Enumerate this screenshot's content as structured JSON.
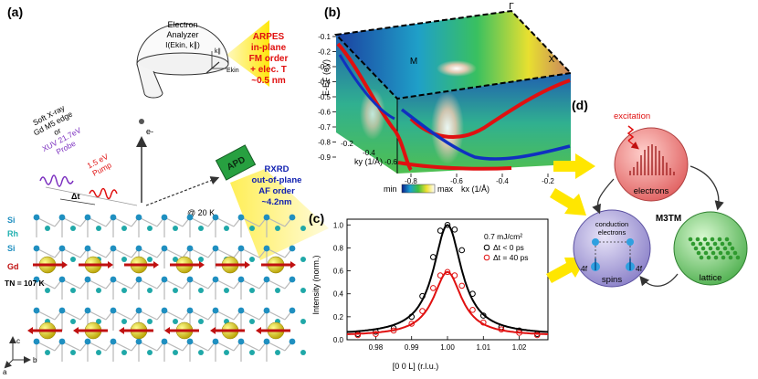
{
  "panel_labels": {
    "a": "(a)",
    "b": "(b)",
    "c": "(c)",
    "d": "(d)"
  },
  "analyzer": {
    "title_line1": "Electron",
    "title_line2": "Analyzer",
    "formula": "I(Ekin, k∥)",
    "k_axis": "k∥",
    "e_axis": "Ekin"
  },
  "arpes_box": {
    "line1": "ARPES",
    "line2": "in-plane",
    "line3": "FM order",
    "line4": "+ elec. T",
    "line5": "~0.5 nm"
  },
  "rxrd_box": {
    "line1": "RXRD",
    "line2": "out-of-plane",
    "line3": "AF order",
    "line4": "~4.2nm"
  },
  "apd_label": "APD",
  "electron_label": "e-",
  "temperature": "@ 20 K",
  "beams": {
    "xray_line1": "Soft X-ray",
    "xray_line2": "Gd M5 edge",
    "xray_line3": "or",
    "xuv_line1": "XUV 21.7eV",
    "xuv_line2": "Probe",
    "pump_line1": "1.5 eV",
    "pump_line2": "Pump",
    "delay": "Δt"
  },
  "crystal": {
    "layers": [
      "Si",
      "Rh",
      "Si",
      "Gd"
    ],
    "neel": "TN = 107 K",
    "axes": [
      "c",
      "b",
      "a"
    ]
  },
  "arpes_plot": {
    "y_axis_label": "E-EF (eV)",
    "y_ticks": [
      "-0.1",
      "-0.2",
      "-0.3",
      "-0.4",
      "-0.5",
      "-0.6",
      "-0.7",
      "-0.8",
      "-0.9"
    ],
    "ky_label": "ky (1/Å)",
    "ky_ticks": [
      "-0.2",
      "-0.4",
      "-0.6"
    ],
    "kx_label": "kx (1/Å)",
    "kx_ticks": [
      "-0.8",
      "-0.6",
      "-0.4",
      "-0.2"
    ],
    "points": [
      "Γ",
      "M",
      "X"
    ],
    "colorbar_min": "min",
    "colorbar_max": "max",
    "colors": {
      "band_red": "#e01010",
      "band_blue": "#1030c0"
    }
  },
  "chart_data": {
    "type": "scatter",
    "x": [
      0.975,
      0.98,
      0.985,
      0.99,
      0.993,
      0.996,
      0.998,
      1.0,
      1.002,
      1.004,
      1.007,
      1.01,
      1.015,
      1.02,
      1.025
    ],
    "series": [
      {
        "name": "Δt < 0 ps",
        "color": "#000000",
        "values": [
          0.05,
          0.07,
          0.1,
          0.2,
          0.38,
          0.72,
          0.95,
          1.0,
          0.96,
          0.78,
          0.4,
          0.21,
          0.11,
          0.08,
          0.05
        ]
      },
      {
        "name": "Δt = 40 ps",
        "color": "#e01010",
        "values": [
          0.04,
          0.05,
          0.08,
          0.14,
          0.25,
          0.45,
          0.56,
          0.59,
          0.56,
          0.47,
          0.26,
          0.15,
          0.09,
          0.06,
          0.04
        ]
      }
    ],
    "fluence": "0.7 mJ/cm²",
    "xlabel": "[0 0 L] (r.l.u.)",
    "ylabel": "Intensity (norm.)",
    "xlim": [
      0.972,
      1.028
    ],
    "ylim": [
      0,
      1.05
    ],
    "xticks": [
      0.98,
      0.99,
      1.0,
      1.01,
      1.02
    ],
    "yticks": [
      0.0,
      0.2,
      0.4,
      0.6,
      0.8,
      1.0
    ],
    "grid": false,
    "legend_position": "top-right"
  },
  "m3tm": {
    "title": "M3TM",
    "excitation": "excitation",
    "electrons": "electrons",
    "spins": "spins",
    "lattice": "lattice",
    "conduction_line1": "conduction",
    "conduction_line2": "electrons",
    "f_left": "4f",
    "f_right": "4f"
  }
}
